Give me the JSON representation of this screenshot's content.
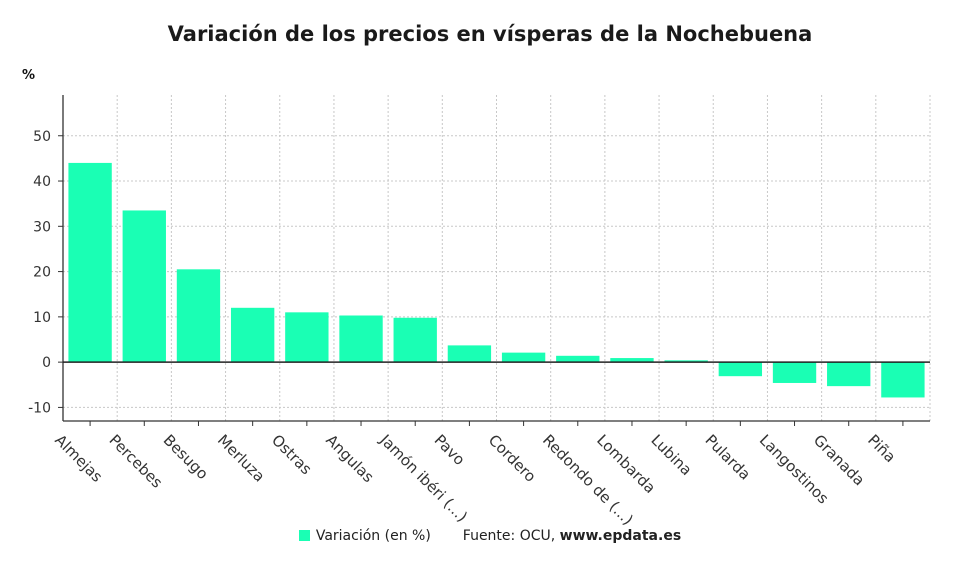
{
  "chart_data": {
    "type": "bar",
    "title": "Variación de los precios en vísperas de la Nochebuena",
    "unit_label": "%",
    "categories": [
      "Almejas",
      "Percebes",
      "Besugo",
      "Merluza",
      "Ostras",
      "Angulas",
      "Jamón ibéri (...)",
      "Pavo",
      "Cordero",
      "Redondo de (...)",
      "Lombarda",
      "Lubina",
      "Pularda",
      "Langostinos",
      "Granada",
      "Piña"
    ],
    "series": [
      {
        "name": "Variación (en %)",
        "values": [
          44,
          33.5,
          20.5,
          12,
          11,
          10.3,
          9.8,
          3.7,
          2.1,
          1.4,
          0.9,
          0.4,
          -3.1,
          -4.6,
          -5.3,
          -7.8
        ]
      }
    ],
    "yticks": [
      -10,
      0,
      10,
      20,
      30,
      40,
      50
    ],
    "ylim": [
      -13,
      59
    ],
    "grid": true,
    "legend_position": "bottom",
    "colors": {
      "bar": "#1affb4",
      "grid": "#c8c8c8",
      "axis": "#333333"
    }
  },
  "source": {
    "label": "Fuente: OCU,",
    "url": "www.epdata.es"
  }
}
